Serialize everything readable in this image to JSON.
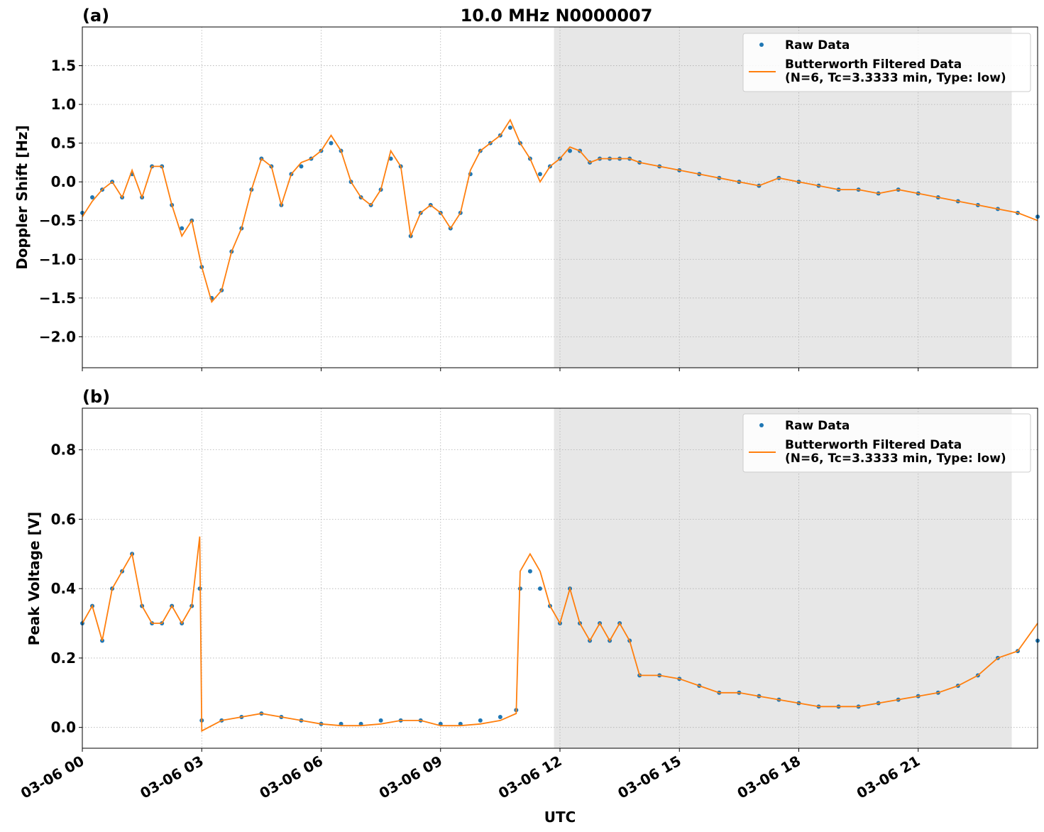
{
  "chart_data": [
    {
      "type": "line",
      "panel_label": "(a)",
      "title": "10.0 MHz N0000007",
      "xlabel": "",
      "ylabel": "Doppler Shift [Hz]",
      "xlim_hours": [
        0,
        24
      ],
      "ylim": [
        -2.4,
        2.0
      ],
      "yticks": [
        1.5,
        1.0,
        0.5,
        0.0,
        -0.5,
        -1.0,
        -1.5,
        -2.0
      ],
      "ytick_labels": [
        "1.5",
        "1.0",
        "0.5",
        "0.0",
        "−0.5",
        "−1.0",
        "−1.5",
        "−2.0"
      ],
      "grid": true,
      "legend_placement": "top-right",
      "shaded_region_hours": [
        11.85,
        23.35
      ],
      "series": [
        {
          "name": "Raw Data",
          "style": "scatter",
          "color": "#1f77b4",
          "x": [
            0,
            0.25,
            0.5,
            0.75,
            1.0,
            1.25,
            1.5,
            1.75,
            2.0,
            2.25,
            2.5,
            2.75,
            3.0,
            3.25,
            3.5,
            3.75,
            4.0,
            4.25,
            4.5,
            4.75,
            5.0,
            5.25,
            5.5,
            5.75,
            6.0,
            6.25,
            6.5,
            6.75,
            7.0,
            7.25,
            7.5,
            7.75,
            8.0,
            8.25,
            8.5,
            8.75,
            9.0,
            9.25,
            9.5,
            9.75,
            10.0,
            10.25,
            10.5,
            10.75,
            11.0,
            11.25,
            11.5,
            11.75,
            12.0,
            12.25,
            12.5,
            12.75,
            13.0,
            13.25,
            13.5,
            13.75,
            14.0,
            14.5,
            15.0,
            15.5,
            16.0,
            16.5,
            17.0,
            17.5,
            18.0,
            18.5,
            19.0,
            19.5,
            20.0,
            20.5,
            21.0,
            21.5,
            22.0,
            22.5,
            23.0,
            23.5,
            24.0
          ],
          "y": [
            -0.4,
            -0.2,
            -0.1,
            0.0,
            -0.2,
            0.1,
            -0.2,
            0.2,
            0.2,
            -0.3,
            -0.6,
            -0.5,
            -1.1,
            -1.5,
            -1.4,
            -0.9,
            -0.6,
            -0.1,
            0.3,
            0.2,
            -0.3,
            0.1,
            0.2,
            0.3,
            0.4,
            0.5,
            0.4,
            0.0,
            -0.2,
            -0.3,
            -0.1,
            0.3,
            0.2,
            -0.7,
            -0.4,
            -0.3,
            -0.4,
            -0.6,
            -0.4,
            0.1,
            0.4,
            0.5,
            0.6,
            0.7,
            0.5,
            0.3,
            0.1,
            0.2,
            0.3,
            0.4,
            0.4,
            0.25,
            0.3,
            0.3,
            0.3,
            0.3,
            0.25,
            0.2,
            0.15,
            0.1,
            0.05,
            0.0,
            -0.05,
            0.05,
            0.0,
            -0.05,
            -0.1,
            -0.1,
            -0.15,
            -0.1,
            -0.15,
            -0.2,
            -0.25,
            -0.3,
            -0.35,
            -0.4,
            -0.45
          ]
        },
        {
          "name": "Butterworth Filtered Data\n(N=6, Tc=3.3333 min, Type: low)",
          "style": "line",
          "color": "#ff7f0e",
          "x": [
            0,
            0.25,
            0.5,
            0.75,
            1.0,
            1.25,
            1.5,
            1.75,
            2.0,
            2.25,
            2.5,
            2.75,
            3.0,
            3.25,
            3.5,
            3.75,
            4.0,
            4.25,
            4.5,
            4.75,
            5.0,
            5.25,
            5.5,
            5.75,
            6.0,
            6.25,
            6.5,
            6.75,
            7.0,
            7.25,
            7.5,
            7.75,
            8.0,
            8.25,
            8.5,
            8.75,
            9.0,
            9.25,
            9.5,
            9.75,
            10.0,
            10.25,
            10.5,
            10.75,
            11.0,
            11.25,
            11.5,
            11.75,
            12.0,
            12.25,
            12.5,
            12.75,
            13.0,
            13.25,
            13.5,
            13.75,
            14.0,
            14.5,
            15.0,
            15.5,
            16.0,
            16.5,
            17.0,
            17.5,
            18.0,
            18.5,
            19.0,
            19.5,
            20.0,
            20.5,
            21.0,
            21.5,
            22.0,
            22.5,
            23.0,
            23.5,
            24.0
          ],
          "y": [
            -0.45,
            -0.25,
            -0.1,
            0.0,
            -0.2,
            0.15,
            -0.2,
            0.2,
            0.2,
            -0.3,
            -0.7,
            -0.5,
            -1.1,
            -1.55,
            -1.4,
            -0.9,
            -0.6,
            -0.1,
            0.3,
            0.2,
            -0.3,
            0.1,
            0.25,
            0.3,
            0.4,
            0.6,
            0.4,
            0.0,
            -0.2,
            -0.3,
            -0.1,
            0.4,
            0.2,
            -0.7,
            -0.4,
            -0.3,
            -0.4,
            -0.6,
            -0.4,
            0.15,
            0.4,
            0.5,
            0.6,
            0.8,
            0.5,
            0.3,
            0.0,
            0.2,
            0.3,
            0.45,
            0.4,
            0.25,
            0.3,
            0.3,
            0.3,
            0.3,
            0.25,
            0.2,
            0.15,
            0.1,
            0.05,
            0.0,
            -0.05,
            0.05,
            0.0,
            -0.05,
            -0.1,
            -0.1,
            -0.15,
            -0.1,
            -0.15,
            -0.2,
            -0.25,
            -0.3,
            -0.35,
            -0.4,
            -0.5
          ]
        }
      ]
    },
    {
      "type": "line",
      "panel_label": "(b)",
      "title": "",
      "xlabel": "UTC",
      "ylabel": "Peak Voltage [V]",
      "xlim_hours": [
        0,
        24
      ],
      "ylim": [
        -0.06,
        0.92
      ],
      "yticks": [
        0.0,
        0.2,
        0.4,
        0.6,
        0.8
      ],
      "ytick_labels": [
        "0.0",
        "0.2",
        "0.4",
        "0.6",
        "0.8"
      ],
      "xtick_hours": [
        0,
        3,
        6,
        9,
        12,
        15,
        18,
        21
      ],
      "xtick_labels": [
        "03-06 00",
        "03-06 03",
        "03-06 06",
        "03-06 09",
        "03-06 12",
        "03-06 15",
        "03-06 18",
        "03-06 21"
      ],
      "grid": true,
      "legend_placement": "top-right",
      "shaded_region_hours": [
        11.85,
        23.35
      ],
      "series": [
        {
          "name": "Raw Data",
          "style": "scatter",
          "color": "#1f77b4",
          "x": [
            0,
            0.25,
            0.5,
            0.75,
            1.0,
            1.25,
            1.5,
            1.75,
            2.0,
            2.25,
            2.5,
            2.75,
            2.95,
            3.0,
            3.5,
            4.0,
            4.5,
            5.0,
            5.5,
            6.0,
            6.5,
            7.0,
            7.5,
            8.0,
            8.5,
            9.0,
            9.5,
            10.0,
            10.5,
            10.9,
            11.0,
            11.25,
            11.5,
            11.75,
            12.0,
            12.25,
            12.5,
            12.75,
            13.0,
            13.25,
            13.5,
            13.75,
            14.0,
            14.5,
            15.0,
            15.5,
            16.0,
            16.5,
            17.0,
            17.5,
            18.0,
            18.5,
            19.0,
            19.5,
            20.0,
            20.5,
            21.0,
            21.5,
            22.0,
            22.5,
            23.0,
            23.5,
            24.0
          ],
          "y": [
            0.3,
            0.35,
            0.25,
            0.4,
            0.45,
            0.5,
            0.35,
            0.3,
            0.3,
            0.35,
            0.3,
            0.35,
            0.4,
            0.02,
            0.02,
            0.03,
            0.04,
            0.03,
            0.02,
            0.01,
            0.01,
            0.01,
            0.02,
            0.02,
            0.02,
            0.01,
            0.01,
            0.02,
            0.03,
            0.05,
            0.4,
            0.45,
            0.4,
            0.35,
            0.3,
            0.4,
            0.3,
            0.25,
            0.3,
            0.25,
            0.3,
            0.25,
            0.15,
            0.15,
            0.14,
            0.12,
            0.1,
            0.1,
            0.09,
            0.08,
            0.07,
            0.06,
            0.06,
            0.06,
            0.07,
            0.08,
            0.09,
            0.1,
            0.12,
            0.15,
            0.2,
            0.22,
            0.25
          ]
        },
        {
          "name": "Butterworth Filtered Data\n(N=6, Tc=3.3333 min, Type: low)",
          "style": "line",
          "color": "#ff7f0e",
          "x": [
            0,
            0.25,
            0.5,
            0.75,
            1.0,
            1.25,
            1.5,
            1.75,
            2.0,
            2.25,
            2.5,
            2.75,
            2.95,
            3.0,
            3.5,
            4.0,
            4.5,
            5.0,
            5.5,
            6.0,
            6.5,
            7.0,
            7.5,
            8.0,
            8.5,
            9.0,
            9.5,
            10.0,
            10.5,
            10.9,
            11.0,
            11.25,
            11.5,
            11.75,
            12.0,
            12.25,
            12.5,
            12.75,
            13.0,
            13.25,
            13.5,
            13.75,
            14.0,
            14.5,
            15.0,
            15.5,
            16.0,
            16.5,
            17.0,
            17.5,
            18.0,
            18.5,
            19.0,
            19.5,
            20.0,
            20.5,
            21.0,
            21.5,
            22.0,
            22.5,
            23.0,
            23.5,
            24.0
          ],
          "y": [
            0.3,
            0.35,
            0.25,
            0.4,
            0.45,
            0.5,
            0.35,
            0.3,
            0.3,
            0.35,
            0.3,
            0.35,
            0.55,
            -0.01,
            0.02,
            0.03,
            0.04,
            0.03,
            0.02,
            0.01,
            0.005,
            0.005,
            0.01,
            0.02,
            0.02,
            0.005,
            0.005,
            0.01,
            0.02,
            0.04,
            0.45,
            0.5,
            0.45,
            0.35,
            0.3,
            0.4,
            0.3,
            0.25,
            0.3,
            0.25,
            0.3,
            0.25,
            0.15,
            0.15,
            0.14,
            0.12,
            0.1,
            0.1,
            0.09,
            0.08,
            0.07,
            0.06,
            0.06,
            0.06,
            0.07,
            0.08,
            0.09,
            0.1,
            0.12,
            0.15,
            0.2,
            0.22,
            0.3
          ]
        }
      ]
    }
  ]
}
